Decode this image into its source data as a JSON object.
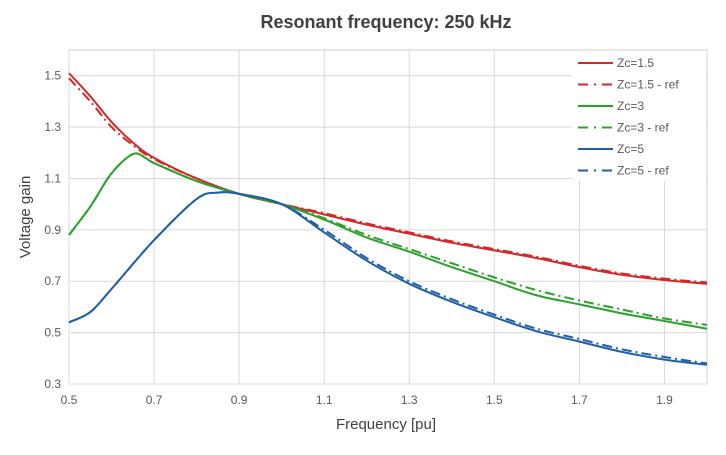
{
  "chart_data": {
    "type": "line",
    "title": "Resonant frequency: 250 kHz",
    "xlabel": "Frequency [pu]",
    "ylabel": "Voltage gain",
    "xlim": [
      0.5,
      2.0
    ],
    "ylim": [
      0.3,
      1.6
    ],
    "xticks": [
      "0.5",
      "0.7",
      "0.9",
      "1.1",
      "1.3",
      "1.5",
      "1.7",
      "1.9"
    ],
    "yticks": [
      "0.3",
      "0.5",
      "0.7",
      "0.9",
      "1.1",
      "1.3",
      "1.5"
    ],
    "grid": true,
    "legend_position": "top-right",
    "series": [
      {
        "name": "Zc=1.5",
        "color": "#d62728",
        "style": "solid",
        "x": [
          0.5,
          0.55,
          0.6,
          0.65,
          0.7,
          0.8,
          0.9,
          1.0,
          1.1,
          1.2,
          1.3,
          1.4,
          1.5,
          1.6,
          1.7,
          1.8,
          1.9,
          2.0
        ],
        "y": [
          1.51,
          1.42,
          1.32,
          1.24,
          1.18,
          1.1,
          1.04,
          1.0,
          0.96,
          0.92,
          0.885,
          0.85,
          0.82,
          0.79,
          0.755,
          0.725,
          0.705,
          0.69
        ]
      },
      {
        "name": "Zc=1.5 - ref",
        "color": "#d62728",
        "style": "dashdot",
        "x": [
          0.5,
          0.55,
          0.6,
          0.65,
          0.7,
          0.8,
          0.9,
          1.0,
          1.1,
          1.2,
          1.3,
          1.4,
          1.5,
          1.6,
          1.7,
          1.8,
          1.9,
          2.0
        ],
        "y": [
          1.49,
          1.4,
          1.3,
          1.23,
          1.175,
          1.1,
          1.04,
          1.0,
          0.965,
          0.925,
          0.89,
          0.855,
          0.825,
          0.795,
          0.76,
          0.73,
          0.71,
          0.695
        ]
      },
      {
        "name": "Zc=3",
        "color": "#2ca02c",
        "style": "solid",
        "x": [
          0.5,
          0.55,
          0.6,
          0.65,
          0.68,
          0.7,
          0.8,
          0.9,
          1.0,
          1.1,
          1.2,
          1.3,
          1.4,
          1.5,
          1.6,
          1.7,
          1.8,
          1.9,
          2.0
        ],
        "y": [
          0.88,
          0.99,
          1.12,
          1.195,
          1.18,
          1.16,
          1.09,
          1.04,
          1.0,
          0.94,
          0.87,
          0.815,
          0.755,
          0.7,
          0.645,
          0.61,
          0.575,
          0.545,
          0.515
        ]
      },
      {
        "name": "Zc=3 - ref",
        "color": "#2ca02c",
        "style": "dashdot",
        "x": [
          0.5,
          0.55,
          0.6,
          0.65,
          0.68,
          0.7,
          0.8,
          0.9,
          1.0,
          1.1,
          1.2,
          1.3,
          1.4,
          1.5,
          1.6,
          1.7,
          1.8,
          1.9,
          2.0
        ],
        "y": [
          0.88,
          0.99,
          1.12,
          1.195,
          1.18,
          1.16,
          1.09,
          1.04,
          1.0,
          0.945,
          0.88,
          0.825,
          0.77,
          0.715,
          0.665,
          0.625,
          0.59,
          0.555,
          0.53
        ]
      },
      {
        "name": "Zc=5",
        "color": "#1f5fa8",
        "style": "solid",
        "x": [
          0.5,
          0.55,
          0.6,
          0.7,
          0.8,
          0.85,
          0.9,
          1.0,
          1.1,
          1.2,
          1.3,
          1.4,
          1.5,
          1.6,
          1.7,
          1.8,
          1.9,
          2.0
        ],
        "y": [
          0.54,
          0.58,
          0.67,
          0.86,
          1.02,
          1.045,
          1.04,
          1.0,
          0.89,
          0.78,
          0.69,
          0.62,
          0.56,
          0.505,
          0.465,
          0.425,
          0.395,
          0.375
        ]
      },
      {
        "name": "Zc=5 - ref",
        "color": "#1f5fa8",
        "style": "dashdot",
        "x": [
          0.5,
          0.55,
          0.6,
          0.7,
          0.8,
          0.85,
          0.9,
          1.0,
          1.1,
          1.2,
          1.3,
          1.4,
          1.5,
          1.6,
          1.7,
          1.8,
          1.9,
          2.0
        ],
        "y": [
          0.54,
          0.58,
          0.67,
          0.86,
          1.02,
          1.045,
          1.04,
          1.0,
          0.9,
          0.79,
          0.7,
          0.63,
          0.57,
          0.515,
          0.475,
          0.435,
          0.405,
          0.38
        ]
      }
    ]
  }
}
